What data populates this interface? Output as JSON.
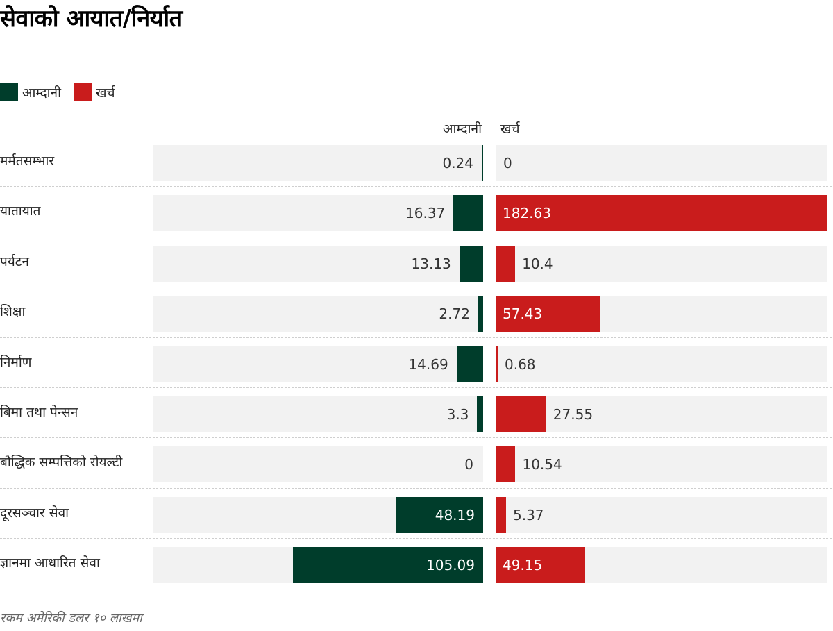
{
  "title": "सेवाको आयात/निर्यात",
  "legend": [
    {
      "label": "आम्दानी",
      "color": "#003d2b"
    },
    {
      "label": "खर्च",
      "color": "#c91c1c"
    }
  ],
  "columns": {
    "income": "आम्दानी",
    "expense": "खर्च"
  },
  "note": "रकम अमेरिकी डलर १० लाखमा",
  "chart_data": {
    "type": "bar",
    "title": "सेवाको आयात/निर्यात",
    "categories": [
      "मर्मतसम्भार",
      "यातायात",
      "पर्यटन",
      "शिक्षा",
      "निर्माण",
      "बिमा तथा पेन्सन",
      "बौद्धिक सम्पत्तिको रोयल्टी",
      "दूरसञ्चार सेवा",
      "ज्ञानमा आधारित सेवा"
    ],
    "series": [
      {
        "name": "आम्दानी",
        "color": "#003d2b",
        "values": [
          0.24,
          16.37,
          13.13,
          2.72,
          14.69,
          3.3,
          0,
          48.19,
          105.09
        ],
        "labels": [
          "0.24",
          "16.37",
          "13.13",
          "2.72",
          "14.69",
          "3.3",
          "0",
          "48.19",
          "105.09"
        ]
      },
      {
        "name": "खर्च",
        "color": "#c91c1c",
        "values": [
          0,
          182.63,
          10.4,
          57.43,
          0.68,
          27.55,
          10.54,
          5.37,
          49.15
        ],
        "labels": [
          "0",
          "182.63",
          "10.4",
          "57.43",
          "0.68",
          "27.55",
          "10.54",
          "5.37",
          "49.15"
        ]
      }
    ],
    "xlim": [
      0,
      182.63
    ],
    "legend": "top-left",
    "grid": false
  }
}
